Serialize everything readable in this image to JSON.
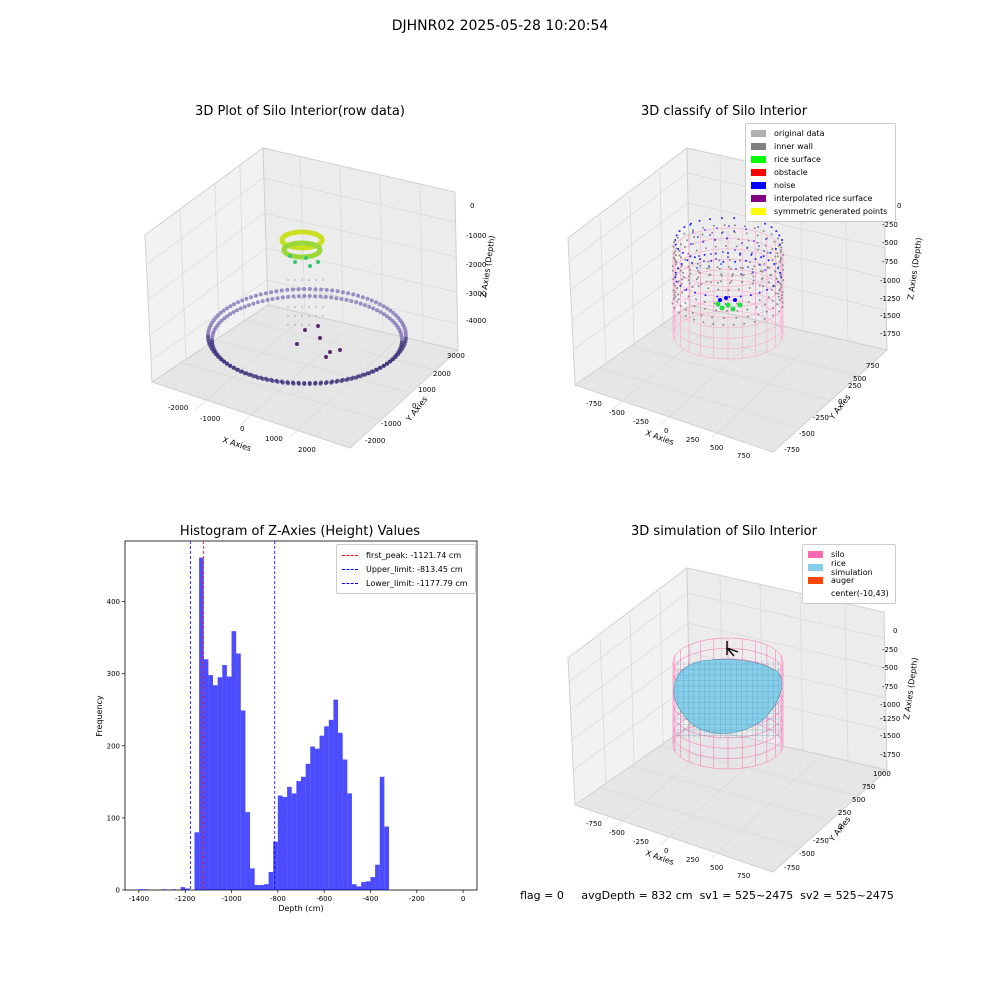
{
  "suptitle": "DJHNR02 2025-05-28 10:20:54",
  "status": {
    "flag": "flag = 0",
    "avg_depth": "avgDepth = 832 cm",
    "sv1": "sv1 = 525~2475",
    "sv2": "sv2 = 525~2475"
  },
  "panels": {
    "raw": {
      "title": "3D Plot of Silo Interior(row data)",
      "xlabel": "X Axies",
      "ylabel": "Y Axies",
      "zlabel": "Z Axies (Depth)",
      "xticks": [
        "-2000",
        "-1000",
        "0",
        "1000",
        "2000"
      ],
      "yticks": [
        "-2000",
        "-1000",
        "0",
        "1000",
        "2000",
        "3000"
      ],
      "zticks": [
        "0",
        "-1000",
        "-2000",
        "-3000",
        "-4000"
      ]
    },
    "classify": {
      "title": "3D classify of Silo Interior",
      "xlabel": "X Axies",
      "ylabel": "Y Axies",
      "zlabel": "Z Axies (Depth)",
      "xticks": [
        "-750",
        "-500",
        "-250",
        "0",
        "250",
        "500",
        "750"
      ],
      "yticks": [
        "-750",
        "-500",
        "-250",
        "0",
        "250",
        "500",
        "750"
      ],
      "zticks": [
        "0",
        "-250",
        "-500",
        "-750",
        "-1000",
        "-1250",
        "-1500",
        "-1750"
      ],
      "legend": [
        {
          "label": "original data",
          "color": "#b0b0b0"
        },
        {
          "label": "inner wall",
          "color": "#808080"
        },
        {
          "label": "rice surface",
          "color": "#00ff00"
        },
        {
          "label": "obstacle",
          "color": "#ff0000"
        },
        {
          "label": "noise",
          "color": "#0000ff"
        },
        {
          "label": "interpolated rice surface",
          "color": "#800080"
        },
        {
          "label": "symmetric generated points",
          "color": "#ffff00"
        }
      ]
    },
    "simulation": {
      "title": "3D simulation of Silo Interior",
      "xlabel": "X Axies",
      "ylabel": "Y Axies",
      "zlabel": "Z Axies (Depth)",
      "xticks": [
        "-750",
        "-500",
        "-250",
        "0",
        "250",
        "500",
        "750"
      ],
      "yticks": [
        "-750",
        "-500",
        "-250",
        "0",
        "250",
        "500",
        "750",
        "1000"
      ],
      "zticks": [
        "0",
        "-250",
        "-500",
        "-750",
        "-1000",
        "-1250",
        "-1500",
        "-1750"
      ],
      "legend": [
        {
          "label": "silo",
          "color": "#ff69b4"
        },
        {
          "label": "rice simulation",
          "color": "#87ceeb"
        },
        {
          "label": "auger",
          "color": "#ff4500"
        },
        {
          "label": "center(-10,43)",
          "color": "#ffffff"
        }
      ]
    }
  },
  "chart_data": {
    "type": "bar",
    "title": "Histogram of Z-Axies (Height) Values",
    "xlabel": "Depth (cm)",
    "ylabel": "Frequency",
    "xlim": [
      -1460,
      60
    ],
    "ylim": [
      0,
      484
    ],
    "xticks": [
      -1400,
      -1200,
      -1000,
      -800,
      -600,
      -400,
      -200,
      0
    ],
    "yticks": [
      0,
      100,
      200,
      300,
      400
    ],
    "bin_width": 20,
    "color": "#0000ff",
    "bins": [
      {
        "x": -1400,
        "v": 1
      },
      {
        "x": -1380,
        "v": 1
      },
      {
        "x": -1300,
        "v": 1
      },
      {
        "x": -1260,
        "v": 1
      },
      {
        "x": -1220,
        "v": 4
      },
      {
        "x": -1200,
        "v": 2
      },
      {
        "x": -1160,
        "v": 80
      },
      {
        "x": -1140,
        "v": 461
      },
      {
        "x": -1120,
        "v": 320
      },
      {
        "x": -1100,
        "v": 298
      },
      {
        "x": -1080,
        "v": 284
      },
      {
        "x": -1060,
        "v": 295
      },
      {
        "x": -1040,
        "v": 312
      },
      {
        "x": -1020,
        "v": 296
      },
      {
        "x": -1000,
        "v": 359
      },
      {
        "x": -980,
        "v": 328
      },
      {
        "x": -960,
        "v": 249
      },
      {
        "x": -940,
        "v": 108
      },
      {
        "x": -920,
        "v": 30
      },
      {
        "x": -900,
        "v": 7
      },
      {
        "x": -880,
        "v": 7
      },
      {
        "x": -860,
        "v": 8
      },
      {
        "x": -840,
        "v": 25
      },
      {
        "x": -820,
        "v": 67
      },
      {
        "x": -800,
        "v": 131
      },
      {
        "x": -780,
        "v": 129
      },
      {
        "x": -760,
        "v": 143
      },
      {
        "x": -740,
        "v": 134
      },
      {
        "x": -720,
        "v": 151
      },
      {
        "x": -700,
        "v": 157
      },
      {
        "x": -680,
        "v": 175
      },
      {
        "x": -660,
        "v": 199
      },
      {
        "x": -640,
        "v": 196
      },
      {
        "x": -620,
        "v": 214
      },
      {
        "x": -600,
        "v": 227
      },
      {
        "x": -580,
        "v": 236
      },
      {
        "x": -560,
        "v": 264
      },
      {
        "x": -540,
        "v": 218
      },
      {
        "x": -520,
        "v": 181
      },
      {
        "x": -500,
        "v": 134
      },
      {
        "x": -480,
        "v": 8
      },
      {
        "x": -460,
        "v": 5
      },
      {
        "x": -440,
        "v": 11
      },
      {
        "x": -420,
        "v": 12
      },
      {
        "x": -400,
        "v": 18
      },
      {
        "x": -380,
        "v": 35
      },
      {
        "x": -360,
        "v": 157
      },
      {
        "x": -340,
        "v": 88
      }
    ],
    "vlines": [
      {
        "label": "first_peak: -1121.74 cm",
        "x": -1121.74,
        "color": "#ff0000"
      },
      {
        "label": "Upper_limit: -813.45 cm",
        "x": -813.45,
        "color": "#0000ff"
      },
      {
        "label": "Lower_limit: -1177.79 cm",
        "x": -1177.79,
        "color": "#0000ff"
      }
    ]
  }
}
